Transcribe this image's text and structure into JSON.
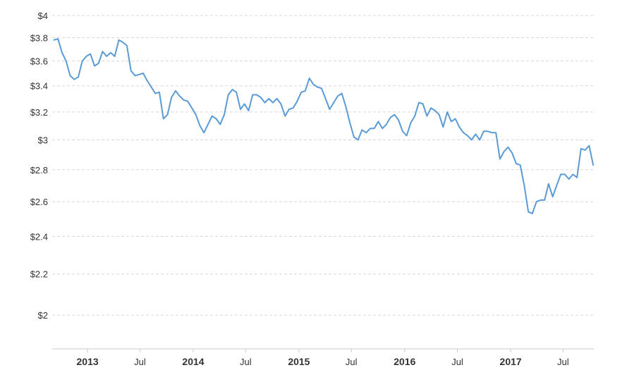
{
  "chart_data": {
    "type": "line",
    "title": "",
    "xlabel": "",
    "ylabel": "",
    "y_scale": "log",
    "ylim": [
      1.85,
      4
    ],
    "xlim": [
      "2012-09-01",
      "2017-10-15"
    ],
    "grid": true,
    "y_ticks": [
      {
        "value": 2.0,
        "label": "$2"
      },
      {
        "value": 2.2,
        "label": "$2.2"
      },
      {
        "value": 2.4,
        "label": "$2.4"
      },
      {
        "value": 2.6,
        "label": "$2.6"
      },
      {
        "value": 2.8,
        "label": "$2.8"
      },
      {
        "value": 3.0,
        "label": "$3"
      },
      {
        "value": 3.2,
        "label": "$3.2"
      },
      {
        "value": 3.4,
        "label": "$3.4"
      },
      {
        "value": 3.6,
        "label": "$3.6"
      },
      {
        "value": 3.8,
        "label": "$3.8"
      },
      {
        "value": 4.0,
        "label": "$4"
      }
    ],
    "x_ticks": [
      {
        "date": "2013-01-01",
        "label": "2013",
        "major": true
      },
      {
        "date": "2013-07-01",
        "label": "Jul",
        "major": false
      },
      {
        "date": "2014-01-01",
        "label": "2014",
        "major": true
      },
      {
        "date": "2014-07-01",
        "label": "Jul",
        "major": false
      },
      {
        "date": "2015-01-01",
        "label": "2015",
        "major": true
      },
      {
        "date": "2015-07-01",
        "label": "Jul",
        "major": false
      },
      {
        "date": "2016-01-01",
        "label": "2016",
        "major": true
      },
      {
        "date": "2016-07-01",
        "label": "Jul",
        "major": false
      },
      {
        "date": "2017-01-01",
        "label": "2017",
        "major": true
      },
      {
        "date": "2017-07-01",
        "label": "Jul",
        "major": false
      }
    ],
    "line_color": "#5b9bd5",
    "series": [
      {
        "points": [
          [
            "2012-09-07",
            3.78
          ],
          [
            "2012-09-21",
            3.79
          ],
          [
            "2012-10-05",
            3.67
          ],
          [
            "2012-10-19",
            3.6
          ],
          [
            "2012-11-02",
            3.48
          ],
          [
            "2012-11-16",
            3.45
          ],
          [
            "2012-11-30",
            3.47
          ],
          [
            "2012-12-14",
            3.6
          ],
          [
            "2012-12-28",
            3.64
          ],
          [
            "2013-01-11",
            3.66
          ],
          [
            "2013-01-25",
            3.56
          ],
          [
            "2013-02-08",
            3.58
          ],
          [
            "2013-02-22",
            3.68
          ],
          [
            "2013-03-08",
            3.64
          ],
          [
            "2013-03-22",
            3.67
          ],
          [
            "2013-04-05",
            3.64
          ],
          [
            "2013-04-19",
            3.78
          ],
          [
            "2013-05-03",
            3.76
          ],
          [
            "2013-05-17",
            3.73
          ],
          [
            "2013-05-31",
            3.52
          ],
          [
            "2013-06-14",
            3.48
          ],
          [
            "2013-06-28",
            3.49
          ],
          [
            "2013-07-12",
            3.5
          ],
          [
            "2013-07-26",
            3.44
          ],
          [
            "2013-08-09",
            3.39
          ],
          [
            "2013-08-23",
            3.34
          ],
          [
            "2013-09-06",
            3.35
          ],
          [
            "2013-09-20",
            3.15
          ],
          [
            "2013-10-04",
            3.18
          ],
          [
            "2013-10-18",
            3.31
          ],
          [
            "2013-11-01",
            3.36
          ],
          [
            "2013-11-15",
            3.32
          ],
          [
            "2013-11-29",
            3.29
          ],
          [
            "2013-12-13",
            3.28
          ],
          [
            "2013-12-27",
            3.23
          ],
          [
            "2014-01-10",
            3.18
          ],
          [
            "2014-01-24",
            3.1
          ],
          [
            "2014-02-07",
            3.05
          ],
          [
            "2014-02-21",
            3.11
          ],
          [
            "2014-03-07",
            3.17
          ],
          [
            "2014-03-21",
            3.15
          ],
          [
            "2014-04-04",
            3.11
          ],
          [
            "2014-04-18",
            3.18
          ],
          [
            "2014-05-02",
            3.33
          ],
          [
            "2014-05-16",
            3.37
          ],
          [
            "2014-05-30",
            3.35
          ],
          [
            "2014-06-13",
            3.22
          ],
          [
            "2014-06-27",
            3.26
          ],
          [
            "2014-07-11",
            3.21
          ],
          [
            "2014-07-25",
            3.33
          ],
          [
            "2014-08-08",
            3.33
          ],
          [
            "2014-08-22",
            3.31
          ],
          [
            "2014-09-05",
            3.27
          ],
          [
            "2014-09-19",
            3.3
          ],
          [
            "2014-10-03",
            3.27
          ],
          [
            "2014-10-17",
            3.3
          ],
          [
            "2014-10-31",
            3.26
          ],
          [
            "2014-11-14",
            3.17
          ],
          [
            "2014-11-28",
            3.22
          ],
          [
            "2014-12-12",
            3.23
          ],
          [
            "2014-12-26",
            3.28
          ],
          [
            "2015-01-09",
            3.35
          ],
          [
            "2015-01-23",
            3.36
          ],
          [
            "2015-02-06",
            3.46
          ],
          [
            "2015-02-20",
            3.41
          ],
          [
            "2015-03-06",
            3.39
          ],
          [
            "2015-03-20",
            3.38
          ],
          [
            "2015-04-03",
            3.3
          ],
          [
            "2015-04-17",
            3.22
          ],
          [
            "2015-05-01",
            3.27
          ],
          [
            "2015-05-15",
            3.32
          ],
          [
            "2015-05-29",
            3.34
          ],
          [
            "2015-06-12",
            3.24
          ],
          [
            "2015-06-26",
            3.12
          ],
          [
            "2015-07-10",
            3.02
          ],
          [
            "2015-07-24",
            3.0
          ],
          [
            "2015-08-07",
            3.07
          ],
          [
            "2015-08-21",
            3.05
          ],
          [
            "2015-09-04",
            3.08
          ],
          [
            "2015-09-18",
            3.08
          ],
          [
            "2015-10-02",
            3.13
          ],
          [
            "2015-10-16",
            3.08
          ],
          [
            "2015-10-30",
            3.11
          ],
          [
            "2015-11-13",
            3.16
          ],
          [
            "2015-11-27",
            3.18
          ],
          [
            "2015-12-11",
            3.14
          ],
          [
            "2015-12-25",
            3.06
          ],
          [
            "2016-01-08",
            3.03
          ],
          [
            "2016-01-22",
            3.12
          ],
          [
            "2016-02-05",
            3.17
          ],
          [
            "2016-02-19",
            3.27
          ],
          [
            "2016-03-04",
            3.26
          ],
          [
            "2016-03-18",
            3.17
          ],
          [
            "2016-04-01",
            3.23
          ],
          [
            "2016-04-15",
            3.21
          ],
          [
            "2016-04-29",
            3.18
          ],
          [
            "2016-05-13",
            3.09
          ],
          [
            "2016-05-27",
            3.2
          ],
          [
            "2016-06-10",
            3.13
          ],
          [
            "2016-06-24",
            3.15
          ],
          [
            "2016-07-08",
            3.09
          ],
          [
            "2016-07-22",
            3.05
          ],
          [
            "2016-08-05",
            3.03
          ],
          [
            "2016-08-19",
            3.0
          ],
          [
            "2016-09-02",
            3.04
          ],
          [
            "2016-09-16",
            3.0
          ],
          [
            "2016-09-30",
            3.06
          ],
          [
            "2016-10-14",
            3.06
          ],
          [
            "2016-10-28",
            3.05
          ],
          [
            "2016-11-11",
            3.05
          ],
          [
            "2016-11-25",
            2.87
          ],
          [
            "2016-12-09",
            2.92
          ],
          [
            "2016-12-23",
            2.95
          ],
          [
            "2017-01-06",
            2.91
          ],
          [
            "2017-01-20",
            2.84
          ],
          [
            "2017-02-03",
            2.83
          ],
          [
            "2017-02-17",
            2.7
          ],
          [
            "2017-03-03",
            2.54
          ],
          [
            "2017-03-17",
            2.53
          ],
          [
            "2017-03-31",
            2.6
          ],
          [
            "2017-04-14",
            2.61
          ],
          [
            "2017-04-28",
            2.61
          ],
          [
            "2017-05-12",
            2.71
          ],
          [
            "2017-05-26",
            2.63
          ],
          [
            "2017-06-09",
            2.7
          ],
          [
            "2017-06-23",
            2.77
          ],
          [
            "2017-07-07",
            2.77
          ],
          [
            "2017-07-21",
            2.74
          ],
          [
            "2017-08-04",
            2.77
          ],
          [
            "2017-08-18",
            2.75
          ],
          [
            "2017-09-01",
            2.94
          ],
          [
            "2017-09-15",
            2.93
          ],
          [
            "2017-09-29",
            2.96
          ],
          [
            "2017-10-13",
            2.83
          ]
        ]
      }
    ]
  }
}
